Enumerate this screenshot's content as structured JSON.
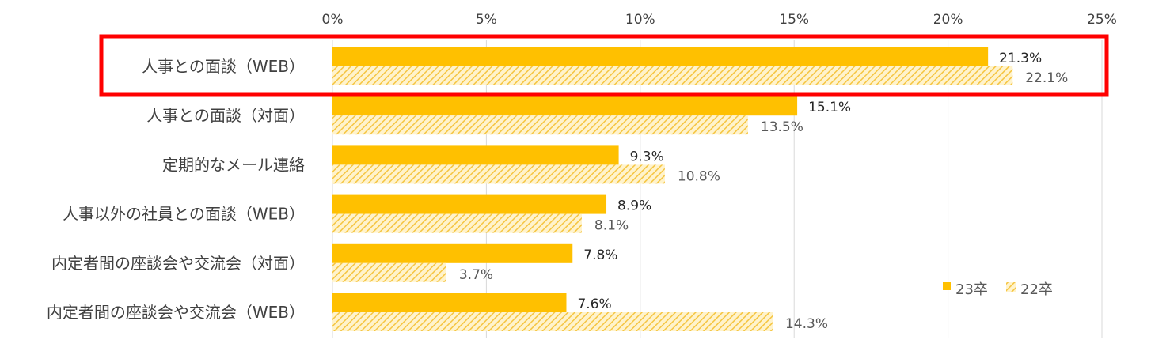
{
  "chart_data": {
    "type": "bar",
    "orientation": "horizontal",
    "categories": [
      "人事との面談（WEB）",
      "人事との面談（対面）",
      "定期的なメール連絡",
      "人事以外の社員との面談（WEB）",
      "内定者間の座談会や交流会（対面）",
      "内定者間の座談会や交流会（WEB）"
    ],
    "series": [
      {
        "name": "23卒",
        "values": [
          21.3,
          15.1,
          9.3,
          8.9,
          7.8,
          7.6
        ],
        "labels": [
          "21.3%",
          "15.1%",
          "9.3%",
          "8.9%",
          "7.8%",
          "7.6%"
        ],
        "color": "#FFC000",
        "pattern": "solid"
      },
      {
        "name": "22卒",
        "values": [
          22.1,
          13.5,
          10.8,
          8.1,
          3.7,
          14.3
        ],
        "labels": [
          "22.1%",
          "13.5%",
          "10.8%",
          "8.1%",
          "3.7%",
          "14.3%"
        ],
        "color": "#FFC000",
        "pattern": "diagonal-hatch"
      }
    ],
    "xlim": [
      0,
      25
    ],
    "ticks": [
      0,
      5,
      10,
      15,
      20,
      25
    ],
    "tick_labels": [
      "0%",
      "5%",
      "10%",
      "15%",
      "20%",
      "25%"
    ],
    "axis_position": "top",
    "grid": true,
    "legend_position": "bottom-right",
    "highlight": {
      "category_index": 0,
      "color": "#FF0000"
    },
    "title": "",
    "xlabel": "",
    "ylabel": ""
  }
}
